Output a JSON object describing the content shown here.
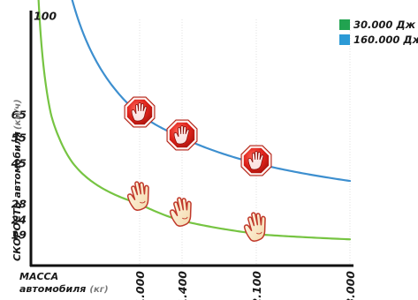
{
  "chart_data": {
    "type": "line",
    "title": "",
    "y_title": "СКОРОСТЬ автомобиля",
    "y_unit": "(км/ч)",
    "x_title_line1": "МАССА",
    "x_title_line2": "автомобиля",
    "x_unit": "(кг)",
    "y_ticks": [
      {
        "value": 100,
        "label": "100"
      },
      {
        "value": 65,
        "label": "65"
      },
      {
        "value": 55,
        "label": "55"
      },
      {
        "value": 45,
        "label": "45"
      },
      {
        "value": 28,
        "label": "28"
      },
      {
        "value": 24,
        "label": "24"
      },
      {
        "value": 19,
        "label": "19"
      }
    ],
    "x_ticks": [
      {
        "value": 1000,
        "label": "1.000"
      },
      {
        "value": 1400,
        "label": "1.400"
      },
      {
        "value": 2100,
        "label": "2.100"
      },
      {
        "value": 3000,
        "label": "3.000"
      }
    ],
    "series": [
      {
        "name": "30.000 Дж",
        "color": "#76c442",
        "marker_icon": "raised-hand-icon",
        "points": [
          {
            "x": 1000,
            "y": 28
          },
          {
            "x": 1400,
            "y": 24
          },
          {
            "x": 2100,
            "y": 19
          }
        ]
      },
      {
        "name": "160.000 Дж",
        "color": "#3d8fcf",
        "marker_icon": "stop-sign-hand-icon",
        "points": [
          {
            "x": 1000,
            "y": 65
          },
          {
            "x": 1400,
            "y": 55
          },
          {
            "x": 2100,
            "y": 45
          }
        ]
      }
    ],
    "legend_position": "top-right",
    "legend_colors": [
      "#21a350",
      "#2c9ad6"
    ],
    "grid": true
  }
}
